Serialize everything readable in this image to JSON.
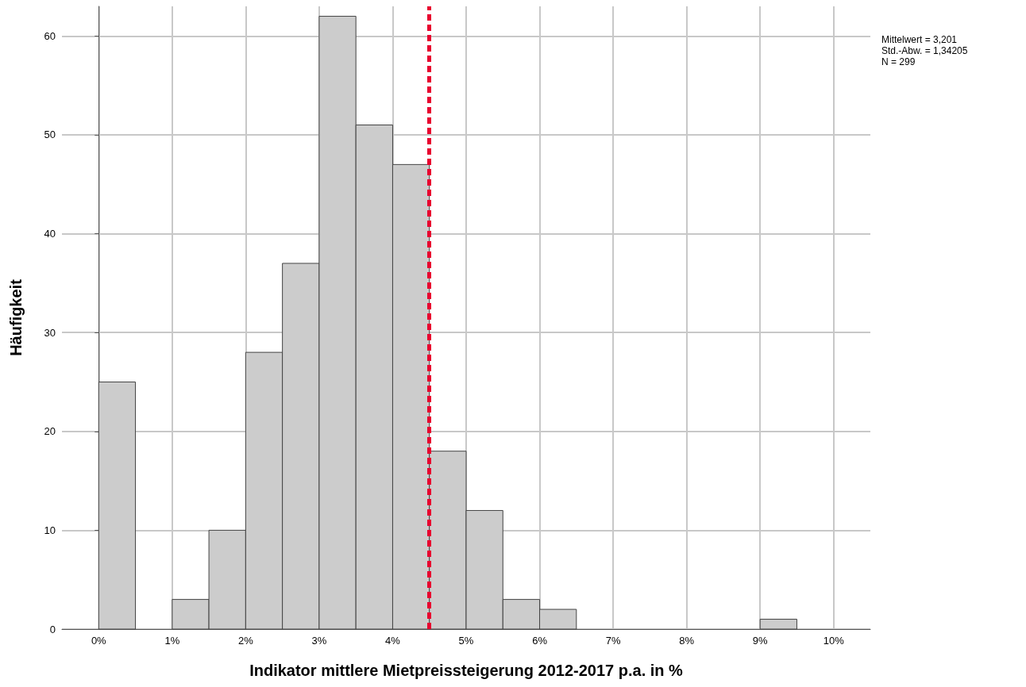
{
  "chart_data": {
    "type": "histogram",
    "xlabel": "Indikator mittlere Mietpreissteigerung 2012-2017 p.a. in %",
    "ylabel": "Häufigkeit",
    "bins": [
      0,
      0.5,
      1,
      1.5,
      2,
      2.5,
      3,
      3.5,
      4,
      4.5,
      5,
      5.5,
      6,
      6.5,
      7,
      7.5,
      8,
      8.5,
      9,
      9.5
    ],
    "values": [
      25,
      0,
      3,
      10,
      28,
      37,
      62,
      51,
      47,
      18,
      12,
      3,
      2,
      0,
      0,
      0,
      0,
      0,
      1
    ],
    "color": "#cccccc",
    "xlim": [
      -0.5,
      10.5
    ],
    "xticks": [
      {
        "value": 0,
        "label": "0%"
      },
      {
        "value": 1,
        "label": "1%"
      },
      {
        "value": 2,
        "label": "2%"
      },
      {
        "value": 3,
        "label": "3%"
      },
      {
        "value": 4,
        "label": "4%"
      },
      {
        "value": 5,
        "label": "5%"
      },
      {
        "value": 6,
        "label": "6%"
      },
      {
        "value": 7,
        "label": "7%"
      },
      {
        "value": 8,
        "label": "8%"
      },
      {
        "value": 9,
        "label": "9%"
      },
      {
        "value": 10,
        "label": "10%"
      }
    ],
    "ylim": [
      0,
      63
    ],
    "yticks": [
      0,
      10,
      20,
      30,
      40,
      50,
      60
    ],
    "grid": true,
    "ref_lines": [
      {
        "axis": "x",
        "value": 4.5,
        "color": "#e8002f",
        "line_style": "dashed"
      }
    ],
    "annotations": [
      "Mittelwert = 3,201",
      "Std.-Abw. = 1,34205",
      "N = 299"
    ]
  }
}
